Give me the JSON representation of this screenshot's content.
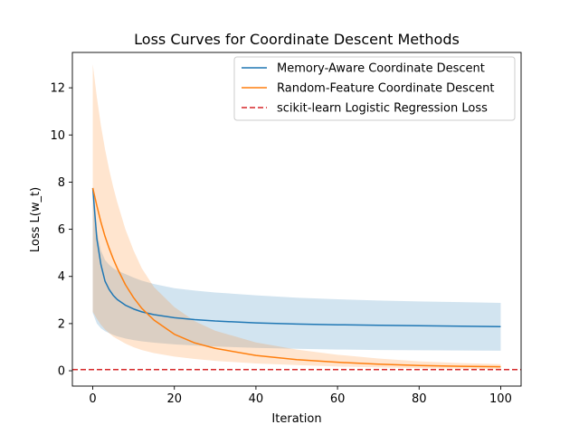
{
  "chart_data": {
    "type": "line",
    "title": "Loss Curves for Coordinate Descent Methods",
    "xlabel": "Iteration",
    "ylabel": "Loss L(w_t)",
    "xlim": [
      -5,
      105
    ],
    "ylim": [
      -0.65,
      13.5
    ],
    "xticks": [
      0,
      20,
      40,
      60,
      80,
      100
    ],
    "yticks": [
      0,
      2,
      4,
      6,
      8,
      10,
      12
    ],
    "grid": false,
    "legend_position": "top-right",
    "x": [
      0,
      1,
      2,
      3,
      4,
      5,
      6,
      8,
      10,
      12,
      15,
      20,
      25,
      30,
      40,
      50,
      60,
      70,
      80,
      90,
      100
    ],
    "series": [
      {
        "name": "Memory-Aware Coordinate Descent",
        "color": "#1f77b4",
        "style": "solid",
        "values": [
          7.75,
          5.6,
          4.5,
          3.8,
          3.45,
          3.2,
          3.02,
          2.78,
          2.62,
          2.5,
          2.38,
          2.25,
          2.17,
          2.11,
          2.03,
          1.98,
          1.95,
          1.93,
          1.91,
          1.89,
          1.87
        ],
        "band_upper": [
          7.75,
          5.9,
          5.1,
          4.7,
          4.5,
          4.35,
          4.25,
          4.1,
          3.95,
          3.82,
          3.68,
          3.5,
          3.4,
          3.32,
          3.2,
          3.1,
          3.03,
          2.98,
          2.94,
          2.91,
          2.88
        ],
        "band_lower": [
          2.45,
          2.0,
          1.8,
          1.68,
          1.6,
          1.52,
          1.46,
          1.37,
          1.3,
          1.25,
          1.19,
          1.12,
          1.07,
          1.03,
          0.97,
          0.93,
          0.9,
          0.88,
          0.87,
          0.86,
          0.85
        ]
      },
      {
        "name": "Random-Feature Coordinate Descent",
        "color": "#ff7f0e",
        "style": "solid",
        "values": [
          7.75,
          7.0,
          6.3,
          5.7,
          5.2,
          4.75,
          4.35,
          3.65,
          3.1,
          2.65,
          2.15,
          1.55,
          1.18,
          0.95,
          0.65,
          0.47,
          0.36,
          0.28,
          0.22,
          0.19,
          0.17
        ],
        "band_upper": [
          13.0,
          11.6,
          10.4,
          9.4,
          8.55,
          7.8,
          7.15,
          6.0,
          5.1,
          4.35,
          3.55,
          2.7,
          2.1,
          1.7,
          1.2,
          0.9,
          0.68,
          0.52,
          0.4,
          0.33,
          0.28
        ],
        "band_lower": [
          2.5,
          2.2,
          1.95,
          1.75,
          1.6,
          1.45,
          1.35,
          1.15,
          1.0,
          0.88,
          0.75,
          0.6,
          0.5,
          0.42,
          0.31,
          0.24,
          0.18,
          0.14,
          0.11,
          0.09,
          0.07
        ]
      }
    ],
    "reference_lines": [
      {
        "name": "scikit-learn Logistic Regression Loss",
        "y": 0.05,
        "color": "#d62728",
        "style": "dashed"
      }
    ]
  }
}
